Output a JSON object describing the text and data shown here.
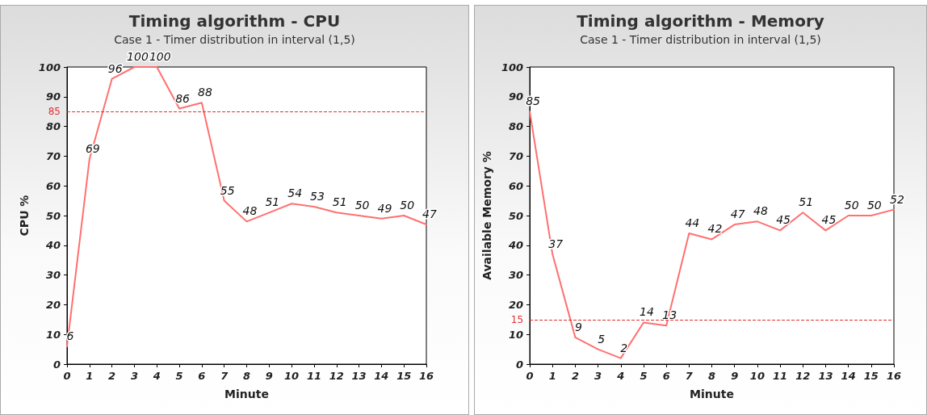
{
  "chart_data": [
    {
      "type": "line",
      "title": "Timing algorithm - CPU",
      "subtitle": "Case 1 - Timer distribution in interval (1,5)",
      "xlabel": "Minute",
      "ylabel": "CPU %",
      "x": [
        0,
        1,
        2,
        3,
        4,
        5,
        6,
        7,
        8,
        9,
        10,
        11,
        12,
        13,
        14,
        15,
        16
      ],
      "series": [
        {
          "color": "#ff7070",
          "values": [
            6,
            69,
            96,
            100,
            100,
            86,
            88,
            55,
            48,
            51,
            54,
            53,
            51,
            50,
            49,
            50,
            47
          ]
        }
      ],
      "xlim": [
        0,
        16
      ],
      "xticks": [
        0,
        1,
        2,
        3,
        4,
        5,
        6,
        7,
        8,
        9,
        10,
        11,
        12,
        13,
        14,
        15,
        16
      ],
      "ylim": [
        0,
        100
      ],
      "yticks": [
        0,
        10,
        20,
        30,
        40,
        50,
        60,
        70,
        80,
        90,
        100
      ],
      "ref_lines": [
        {
          "axis": "y",
          "value": 85,
          "label": "85",
          "color": "#e03030",
          "line_style": "dashed"
        }
      ],
      "data_labels": true,
      "grid": false,
      "marker": "none",
      "line_style": "solid"
    },
    {
      "type": "line",
      "title": "Timing algorithm - Memory",
      "subtitle": "Case 1 - Timer distribution in interval (1,5)",
      "xlabel": "Minute",
      "ylabel": "Available Memory %",
      "x": [
        0,
        1,
        2,
        3,
        4,
        5,
        6,
        7,
        8,
        9,
        10,
        11,
        12,
        13,
        14,
        15,
        16
      ],
      "series": [
        {
          "color": "#ff7070",
          "values": [
            85,
            37,
            9,
            5,
            2,
            14,
            13,
            44,
            42,
            47,
            48,
            45,
            51,
            45,
            50,
            50,
            52
          ]
        }
      ],
      "xlim": [
        0,
        16
      ],
      "xticks": [
        0,
        1,
        2,
        3,
        4,
        5,
        6,
        7,
        8,
        9,
        10,
        11,
        12,
        13,
        14,
        15,
        16
      ],
      "ylim": [
        0,
        100
      ],
      "yticks": [
        0,
        10,
        20,
        30,
        40,
        50,
        60,
        70,
        80,
        90,
        100
      ],
      "ref_lines": [
        {
          "axis": "y",
          "value": 15,
          "label": "15",
          "color": "#e03030",
          "line_style": "dashed"
        }
      ],
      "data_labels": true,
      "grid": false,
      "marker": "none",
      "line_style": "solid"
    }
  ]
}
